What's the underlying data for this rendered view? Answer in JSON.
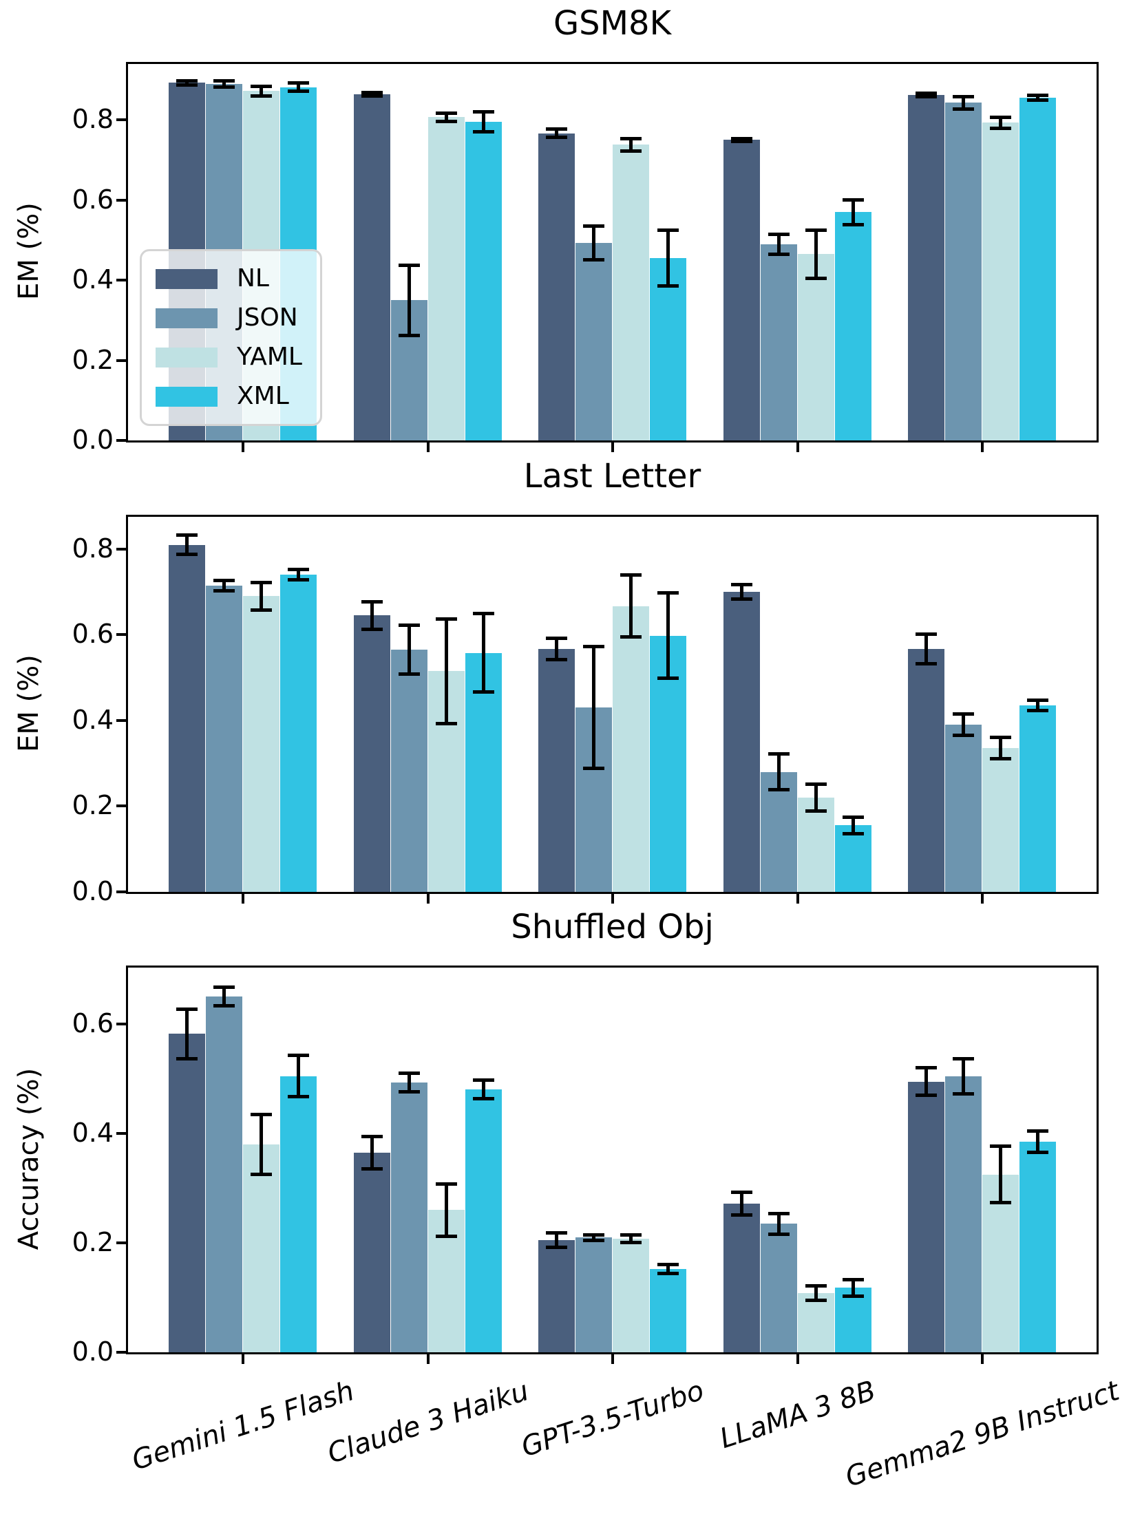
{
  "figure": {
    "background": "#ffffff",
    "text_color": "#000000",
    "axis_color": "#000000"
  },
  "series_colors": {
    "NL": "#4A5F7D",
    "JSON": "#6D95AF",
    "YAML": "#BFE1E3",
    "XML": "#31C3E3"
  },
  "legend": {
    "entries": [
      "NL",
      "JSON",
      "YAML",
      "XML"
    ],
    "position": "upper-left inside first chart"
  },
  "chart_data": [
    {
      "type": "bar",
      "title": "GSM8K",
      "ylabel": "EM (%)",
      "xlabel": "",
      "ylim": [
        0,
        0.945
      ],
      "yticks": [
        0.0,
        0.2,
        0.4,
        0.6,
        0.8
      ],
      "grid": false,
      "legend_position": "center left",
      "categories": [
        "Gemini 1.5 Flash",
        "Claude 3 Haiku",
        "GPT-3.5-Turbo",
        "LLaMA 3 8B",
        "Gemma2 9B Instruct"
      ],
      "series": [
        {
          "name": "NL",
          "color": "#4A5F7D",
          "values": [
            0.893,
            0.864,
            0.767,
            0.75,
            0.863
          ],
          "errors": [
            0.005,
            0.004,
            0.01,
            0.004,
            0.004
          ]
        },
        {
          "name": "JSON",
          "color": "#6D95AF",
          "values": [
            0.89,
            0.35,
            0.493,
            0.49,
            0.843
          ],
          "errors": [
            0.008,
            0.088,
            0.042,
            0.025,
            0.015
          ]
        },
        {
          "name": "YAML",
          "color": "#BFE1E3",
          "values": [
            0.872,
            0.807,
            0.738,
            0.465,
            0.793
          ],
          "errors": [
            0.012,
            0.01,
            0.015,
            0.06,
            0.013
          ]
        },
        {
          "name": "XML",
          "color": "#31C3E3",
          "values": [
            0.882,
            0.795,
            0.455,
            0.57,
            0.855
          ],
          "errors": [
            0.01,
            0.025,
            0.07,
            0.031,
            0.006
          ]
        }
      ]
    },
    {
      "type": "bar",
      "title": "Last Letter",
      "ylabel": "EM (%)",
      "xlabel": "",
      "ylim": [
        0,
        0.88
      ],
      "yticks": [
        0.0,
        0.2,
        0.4,
        0.6,
        0.8
      ],
      "grid": false,
      "categories": [
        "Gemini 1.5 Flash",
        "Claude 3 Haiku",
        "GPT-3.5-Turbo",
        "LLaMA 3 8B",
        "Gemma2 9B Instruct"
      ],
      "series": [
        {
          "name": "NL",
          "color": "#4A5F7D",
          "values": [
            0.81,
            0.645,
            0.567,
            0.7,
            0.567
          ],
          "errors": [
            0.022,
            0.032,
            0.025,
            0.017,
            0.035
          ]
        },
        {
          "name": "JSON",
          "color": "#6D95AF",
          "values": [
            0.715,
            0.565,
            0.43,
            0.28,
            0.39
          ],
          "errors": [
            0.012,
            0.057,
            0.142,
            0.042,
            0.025
          ]
        },
        {
          "name": "YAML",
          "color": "#BFE1E3",
          "values": [
            0.69,
            0.515,
            0.667,
            0.22,
            0.335
          ],
          "errors": [
            0.032,
            0.122,
            0.072,
            0.032,
            0.025
          ]
        },
        {
          "name": "XML",
          "color": "#31C3E3",
          "values": [
            0.74,
            0.558,
            0.598,
            0.155,
            0.435
          ],
          "errors": [
            0.012,
            0.092,
            0.1,
            0.02,
            0.012
          ]
        }
      ]
    },
    {
      "type": "bar",
      "title": "Shuffled Obj",
      "ylabel": "Accuracy (%)",
      "xlabel": "",
      "ylim": [
        0,
        0.707
      ],
      "yticks": [
        0.0,
        0.2,
        0.4,
        0.6
      ],
      "grid": false,
      "categories": [
        "Gemini 1.5 Flash",
        "Claude 3 Haiku",
        "GPT-3.5-Turbo",
        "LLaMA 3 8B",
        "Gemma2 9B Instruct"
      ],
      "series": [
        {
          "name": "NL",
          "color": "#4A5F7D",
          "values": [
            0.582,
            0.365,
            0.205,
            0.272,
            0.495
          ],
          "errors": [
            0.045,
            0.03,
            0.013,
            0.021,
            0.025
          ]
        },
        {
          "name": "JSON",
          "color": "#6D95AF",
          "values": [
            0.65,
            0.493,
            0.21,
            0.235,
            0.505
          ],
          "errors": [
            0.017,
            0.017,
            0.005,
            0.019,
            0.032
          ]
        },
        {
          "name": "YAML",
          "color": "#BFE1E3",
          "values": [
            0.38,
            0.26,
            0.208,
            0.108,
            0.325
          ],
          "errors": [
            0.055,
            0.048,
            0.007,
            0.013,
            0.052
          ]
        },
        {
          "name": "XML",
          "color": "#31C3E3",
          "values": [
            0.505,
            0.48,
            0.152,
            0.118,
            0.385
          ],
          "errors": [
            0.038,
            0.017,
            0.008,
            0.015,
            0.02
          ]
        }
      ]
    }
  ]
}
